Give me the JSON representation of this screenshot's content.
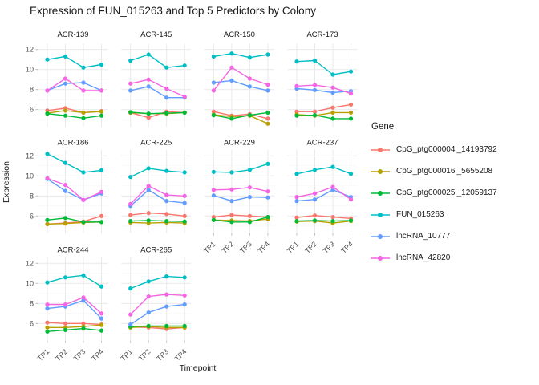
{
  "title": "Expression of FUN_015263 and Top 5 Predictors by Colony",
  "axes": {
    "x_title": "Timepoint",
    "y_title": "Expression",
    "x_ticks": [
      "TP1",
      "TP2",
      "TP3",
      "TP4"
    ],
    "y_ticks": [
      "6",
      "8",
      "10",
      "12"
    ]
  },
  "legend": {
    "title": "Gene",
    "entries": [
      {
        "label": "CpG_ptg000004l_14193792",
        "color": "#F8766D"
      },
      {
        "label": "CpG_ptg000016l_5655208",
        "color": "#B79F00"
      },
      {
        "label": "CpG_ptg000025l_12059137",
        "color": "#00BA38"
      },
      {
        "label": "FUN_015263",
        "color": "#00BFC4"
      },
      {
        "label": "lncRNA_10777",
        "color": "#619CFF"
      },
      {
        "label": "lncRNA_42820",
        "color": "#F564E3"
      }
    ]
  },
  "chart_data": {
    "type": "line",
    "facet_by": "Colony",
    "x": [
      "TP1",
      "TP2",
      "TP3",
      "TP4"
    ],
    "xlabel": "Timepoint",
    "ylabel": "Expression",
    "ylim": [
      4.3,
      12.6
    ],
    "y_major_gridlines": [
      6,
      8,
      10,
      12
    ],
    "y_minor_gridlines": [
      5,
      7,
      9,
      11
    ],
    "legend_position": "right",
    "facets": [
      {
        "name": "ACR-139",
        "series": {
          "CpG_ptg000004l_14193792": [
            5.9,
            6.15,
            5.7,
            5.85
          ],
          "CpG_ptg000016l_5655208": [
            5.65,
            5.9,
            5.7,
            5.8
          ],
          "CpG_ptg000025l_12059137": [
            5.6,
            5.4,
            5.15,
            5.4
          ],
          "FUN_015263": [
            11.0,
            11.3,
            10.2,
            10.5
          ],
          "lncRNA_10777": [
            7.9,
            8.6,
            8.7,
            7.9
          ],
          "lncRNA_42820": [
            7.9,
            9.1,
            7.9,
            7.9
          ]
        }
      },
      {
        "name": "ACR-145",
        "series": {
          "CpG_ptg000004l_14193792": [
            5.7,
            5.2,
            5.8,
            5.7
          ],
          "CpG_ptg000016l_5655208": [
            5.7,
            5.6,
            5.6,
            5.7
          ],
          "CpG_ptg000025l_12059137": [
            5.75,
            5.6,
            5.65,
            5.7
          ],
          "FUN_015263": [
            10.9,
            11.5,
            10.2,
            10.4
          ],
          "lncRNA_10777": [
            7.9,
            8.3,
            7.2,
            7.2
          ],
          "lncRNA_42820": [
            8.6,
            9.0,
            8.1,
            7.3
          ]
        }
      },
      {
        "name": "ACR-150",
        "series": {
          "CpG_ptg000004l_14193792": [
            5.8,
            5.4,
            5.55,
            5.1
          ],
          "CpG_ptg000016l_5655208": [
            5.5,
            5.3,
            5.4,
            4.6
          ],
          "CpG_ptg000025l_12059137": [
            5.45,
            5.1,
            5.45,
            5.7
          ],
          "FUN_015263": [
            11.3,
            11.6,
            11.2,
            11.5
          ],
          "lncRNA_10777": [
            8.7,
            8.9,
            8.3,
            7.9
          ],
          "lncRNA_42820": [
            7.9,
            10.2,
            9.1,
            8.5
          ]
        }
      },
      {
        "name": "ACR-173",
        "series": {
          "CpG_ptg000004l_14193792": [
            5.8,
            5.8,
            6.2,
            6.5
          ],
          "CpG_ptg000016l_5655208": [
            5.5,
            5.4,
            5.7,
            5.7
          ],
          "CpG_ptg000025l_12059137": [
            5.4,
            5.45,
            5.1,
            5.1
          ],
          "FUN_015263": [
            10.8,
            10.9,
            9.5,
            9.8
          ],
          "lncRNA_10777": [
            8.1,
            7.95,
            7.7,
            7.85
          ],
          "lncRNA_42820": [
            8.35,
            8.45,
            8.2,
            7.6
          ]
        }
      },
      {
        "name": "ACR-186",
        "series": {
          "CpG_ptg000004l_14193792": [
            5.2,
            5.3,
            5.45,
            6.0
          ],
          "CpG_ptg000016l_5655208": [
            5.2,
            5.25,
            5.35,
            5.4
          ],
          "CpG_ptg000025l_12059137": [
            5.6,
            5.8,
            5.4,
            5.4
          ],
          "FUN_015263": [
            12.2,
            11.3,
            10.35,
            10.55
          ],
          "lncRNA_10777": [
            9.7,
            8.5,
            7.6,
            8.25
          ],
          "lncRNA_42820": [
            9.75,
            9.1,
            7.6,
            8.4
          ]
        }
      },
      {
        "name": "ACR-225",
        "series": {
          "CpG_ptg000004l_14193792": [
            6.1,
            6.3,
            6.2,
            6.0
          ],
          "CpG_ptg000016l_5655208": [
            5.35,
            5.3,
            5.35,
            5.3
          ],
          "CpG_ptg000025l_12059137": [
            5.5,
            5.55,
            5.5,
            5.45
          ],
          "FUN_015263": [
            9.9,
            10.75,
            10.5,
            10.35
          ],
          "lncRNA_10777": [
            7.0,
            8.6,
            7.5,
            7.3
          ],
          "lncRNA_42820": [
            7.2,
            9.0,
            8.1,
            8.0
          ]
        }
      },
      {
        "name": "ACR-229",
        "series": {
          "CpG_ptg000004l_14193792": [
            5.9,
            6.1,
            6.0,
            5.9
          ],
          "CpG_ptg000016l_5655208": [
            5.6,
            5.55,
            5.5,
            5.7
          ],
          "CpG_ptg000025l_12059137": [
            5.6,
            5.4,
            5.4,
            5.9
          ],
          "FUN_015263": [
            10.4,
            10.35,
            10.6,
            11.2
          ],
          "lncRNA_10777": [
            8.05,
            7.5,
            7.9,
            7.85
          ],
          "lncRNA_42820": [
            8.6,
            8.65,
            8.85,
            8.45
          ]
        }
      },
      {
        "name": "ACR-237",
        "series": {
          "CpG_ptg000004l_14193792": [
            5.85,
            6.05,
            5.9,
            5.75
          ],
          "CpG_ptg000016l_5655208": [
            5.45,
            5.5,
            5.3,
            5.5
          ],
          "CpG_ptg000025l_12059137": [
            5.5,
            5.55,
            5.5,
            5.55
          ],
          "FUN_015263": [
            10.2,
            10.6,
            10.9,
            10.2
          ],
          "lncRNA_10777": [
            7.5,
            7.65,
            8.6,
            7.9
          ],
          "lncRNA_42820": [
            7.9,
            8.25,
            8.9,
            7.65
          ]
        }
      },
      {
        "name": "ACR-244",
        "series": {
          "CpG_ptg000004l_14193792": [
            6.1,
            6.0,
            6.0,
            5.9
          ],
          "CpG_ptg000016l_5655208": [
            5.6,
            5.6,
            5.7,
            5.85
          ],
          "CpG_ptg000025l_12059137": [
            5.2,
            5.35,
            5.5,
            5.3
          ],
          "FUN_015263": [
            10.1,
            10.6,
            10.8,
            9.7
          ],
          "lncRNA_10777": [
            7.5,
            7.7,
            8.3,
            6.5
          ],
          "lncRNA_42820": [
            7.9,
            7.9,
            8.6,
            7.0
          ]
        }
      },
      {
        "name": "ACR-265",
        "series": {
          "CpG_ptg000004l_14193792": [
            5.65,
            5.6,
            5.45,
            5.6
          ],
          "CpG_ptg000016l_5655208": [
            5.6,
            5.7,
            5.6,
            5.6
          ],
          "CpG_ptg000025l_12059137": [
            5.7,
            5.75,
            5.75,
            5.75
          ],
          "FUN_015263": [
            9.5,
            10.2,
            10.7,
            10.6
          ],
          "lncRNA_10777": [
            5.9,
            7.1,
            7.7,
            7.9
          ],
          "lncRNA_42820": [
            6.9,
            8.7,
            8.9,
            8.8
          ]
        }
      }
    ]
  }
}
